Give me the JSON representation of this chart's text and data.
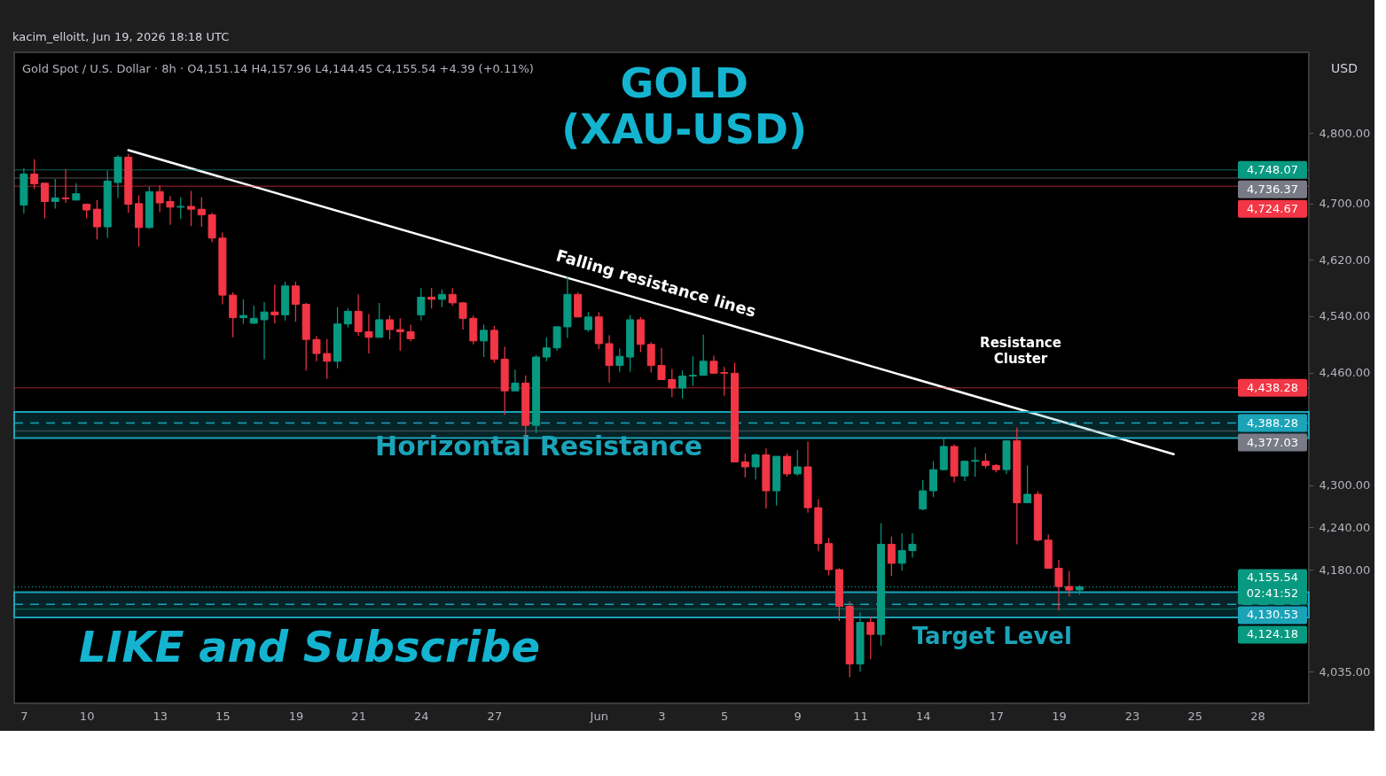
{
  "chart_data": {
    "type": "candlestick",
    "title": "GOLD (XAU-USD)",
    "subtitle": "Gold Spot / U.S. Dollar · 8h · O4,151.14 H4,157.96 L4,144.45 C4,155.54 +4.39 (+0.11%)",
    "annotations": [
      "kacim_elloitt, Jun 19, 2026 18:18 UTC",
      "Falling resistance lines",
      "Resistance Cluster",
      "LIKE and Subscribe",
      "USD"
    ],
    "categories": [
      "7",
      null,
      null,
      null,
      null,
      null,
      "10",
      null,
      null,
      null,
      null,
      null,
      null,
      "13",
      null,
      null,
      null,
      null,
      null,
      "15",
      null,
      null,
      null,
      null,
      null,
      null,
      "19",
      null,
      null,
      null,
      null,
      null,
      "21",
      null,
      null,
      null,
      null,
      null,
      "24",
      null,
      null,
      null,
      null,
      null,
      null,
      "27",
      null,
      null,
      null,
      null,
      null,
      null,
      null,
      null,
      null,
      "Jun",
      null,
      null,
      null,
      null,
      null,
      "3",
      null,
      null,
      null,
      null,
      null,
      "5",
      null,
      null,
      null,
      null,
      null,
      null,
      "9",
      null,
      null,
      null,
      null,
      null,
      "11",
      null,
      null,
      null,
      null,
      null,
      "14",
      null,
      null,
      null,
      null,
      null,
      null,
      "17",
      null,
      null,
      null,
      null,
      null,
      "19",
      null,
      null,
      null,
      null,
      null,
      null,
      "23",
      null,
      null,
      null,
      null,
      null,
      "25",
      null,
      null,
      null,
      null,
      null,
      "28",
      null,
      null,
      null,
      null
    ],
    "ohlc": [
      [
        4698,
        4750,
        4686,
        4742
      ],
      [
        4742,
        4763,
        4721,
        4728
      ],
      [
        4729,
        4729,
        4679,
        4703
      ],
      [
        4703,
        4735,
        4693,
        4708
      ],
      [
        4708,
        4749,
        4701,
        4707
      ],
      [
        4705,
        4729,
        4705,
        4714
      ],
      [
        4699,
        4700,
        4679,
        4691
      ],
      [
        4692,
        4705,
        4649,
        4667
      ],
      [
        4667,
        4747,
        4651,
        4732
      ],
      [
        4730,
        4769,
        4708,
        4766
      ],
      [
        4766,
        4771,
        4687,
        4699
      ],
      [
        4700,
        4712,
        4639,
        4666
      ],
      [
        4666,
        4724,
        4664,
        4717
      ],
      [
        4717,
        4726,
        4688,
        4701
      ],
      [
        4703,
        4711,
        4670,
        4695
      ],
      [
        4695,
        4709,
        4678,
        4696
      ],
      [
        4696,
        4718,
        4668,
        4692
      ],
      [
        4692,
        4709,
        4667,
        4684
      ],
      [
        4684,
        4687,
        4645,
        4651
      ],
      [
        4651,
        4659,
        4557,
        4570
      ],
      [
        4570,
        4574,
        4510,
        4538
      ],
      [
        4538,
        4564,
        4529,
        4541
      ],
      [
        4530,
        4555,
        4529,
        4537
      ],
      [
        4535,
        4560,
        4479,
        4546
      ],
      [
        4546,
        4585,
        4530,
        4542
      ],
      [
        4542,
        4589,
        4534,
        4583
      ],
      [
        4583,
        4589,
        4532,
        4557
      ],
      [
        4557,
        4559,
        4463,
        4507
      ],
      [
        4507,
        4512,
        4476,
        4487
      ],
      [
        4487,
        4508,
        4451,
        4476
      ],
      [
        4476,
        4553,
        4466,
        4529
      ],
      [
        4529,
        4551,
        4524,
        4547
      ],
      [
        4547,
        4571,
        4512,
        4518
      ],
      [
        4518,
        4543,
        4487,
        4510
      ],
      [
        4510,
        4559,
        4510,
        4535
      ],
      [
        4535,
        4541,
        4507,
        4521
      ],
      [
        4521,
        4537,
        4491,
        4518
      ],
      [
        4518,
        4528,
        4504,
        4508
      ],
      [
        4542,
        4580,
        4534,
        4567
      ],
      [
        4567,
        4580,
        4551,
        4564
      ],
      [
        4564,
        4578,
        4553,
        4571
      ],
      [
        4571,
        4580,
        4555,
        4559
      ],
      [
        4559,
        4560,
        4521,
        4537
      ],
      [
        4537,
        4541,
        4500,
        4505
      ],
      [
        4505,
        4528,
        4482,
        4520
      ],
      [
        4520,
        4526,
        4474,
        4479
      ],
      [
        4479,
        4497,
        4400,
        4434
      ],
      [
        4434,
        4464,
        4434,
        4445
      ],
      [
        4445,
        4456,
        4367,
        4385
      ],
      [
        4385,
        4485,
        4374,
        4482
      ],
      [
        4482,
        4510,
        4476,
        4495
      ],
      [
        4495,
        4526,
        4491,
        4525
      ],
      [
        4525,
        4596,
        4509,
        4571
      ],
      [
        4571,
        4574,
        4539,
        4539
      ],
      [
        4521,
        4546,
        4518,
        4539
      ],
      [
        4539,
        4546,
        4493,
        4501
      ],
      [
        4501,
        4513,
        4446,
        4470
      ],
      [
        4470,
        4494,
        4461,
        4483
      ],
      [
        4482,
        4542,
        4461,
        4535
      ],
      [
        4535,
        4539,
        4489,
        4500
      ],
      [
        4500,
        4503,
        4460,
        4470
      ],
      [
        4470,
        4495,
        4450,
        4450
      ],
      [
        4450,
        4465,
        4425,
        4438
      ],
      [
        4438,
        4463,
        4423,
        4455
      ],
      [
        4455,
        4483,
        4441,
        4456
      ],
      [
        4456,
        4514,
        4456,
        4476
      ],
      [
        4476,
        4484,
        4459,
        4459
      ],
      [
        4460,
        4468,
        4427,
        4459
      ],
      [
        4459,
        4474,
        4333,
        4333
      ],
      [
        4333,
        4345,
        4311,
        4326
      ],
      [
        4326,
        4345,
        4308,
        4343
      ],
      [
        4343,
        4352,
        4267,
        4292
      ],
      [
        4292,
        4341,
        4271,
        4341
      ],
      [
        4341,
        4345,
        4312,
        4316
      ],
      [
        4316,
        4350,
        4313,
        4326
      ],
      [
        4326,
        4362,
        4261,
        4268
      ],
      [
        4268,
        4280,
        4206,
        4217
      ],
      [
        4217,
        4225,
        4172,
        4180
      ],
      [
        4180,
        4182,
        4107,
        4128
      ],
      [
        4128,
        4135,
        4027,
        4046
      ],
      [
        4046,
        4119,
        4035,
        4105
      ],
      [
        4105,
        4113,
        4053,
        4088
      ],
      [
        4088,
        4246,
        4072,
        4216
      ],
      [
        4216,
        4227,
        4171,
        4189
      ],
      [
        4189,
        4232,
        4178,
        4207
      ],
      [
        4207,
        4232,
        4197,
        4216
      ],
      [
        4266,
        4307,
        4264,
        4292
      ],
      [
        4292,
        4334,
        4283,
        4322
      ],
      [
        4322,
        4368,
        4321,
        4355
      ],
      [
        4355,
        4358,
        4304,
        4313
      ],
      [
        4313,
        4334,
        4306,
        4334
      ],
      [
        4334,
        4354,
        4312,
        4335
      ],
      [
        4334,
        4345,
        4324,
        4328
      ],
      [
        4328,
        4330,
        4318,
        4322
      ],
      [
        4322,
        4364,
        4316,
        4363
      ],
      [
        4363,
        4382,
        4216,
        4275
      ],
      [
        4275,
        4328,
        4275,
        4287
      ],
      [
        4287,
        4291,
        4220,
        4222
      ],
      [
        4222,
        4230,
        4182,
        4182
      ],
      [
        4182,
        4194,
        4122,
        4156
      ],
      [
        4156,
        4178,
        4142,
        4151
      ],
      [
        4151.14,
        4157.96,
        4144.45,
        4155.54
      ],
      null,
      null,
      null,
      null,
      null,
      null,
      null,
      null,
      null,
      null,
      null,
      null,
      null,
      null,
      null,
      null,
      null,
      null,
      null,
      null,
      null
    ],
    "colors": [
      "#089981",
      "#f23645",
      "#f23645",
      "#089981",
      "#f23645",
      "#089981",
      "#f23645",
      "#f23645",
      "#089981",
      "#089981",
      "#f23645",
      "#f23645",
      "#089981",
      "#f23645",
      "#f23645",
      "#089981",
      "#f23645",
      "#f23645",
      "#f23645",
      "#f23645",
      "#f23645",
      "#089981",
      "#089981",
      "#089981",
      "#f23645",
      "#089981",
      "#f23645",
      "#f23645",
      "#f23645",
      "#f23645",
      "#089981",
      "#089981",
      "#f23645",
      "#f23645",
      "#089981",
      "#f23645",
      "#f23645",
      "#f23645",
      "#089981",
      "#f23645",
      "#089981",
      "#f23645",
      "#f23645",
      "#f23645",
      "#089981",
      "#f23645",
      "#f23645",
      "#089981",
      "#f23645",
      "#089981",
      "#089981",
      "#089981",
      "#089981",
      "#f23645",
      "#089981",
      "#f23645",
      "#f23645",
      "#089981",
      "#089981",
      "#f23645",
      "#f23645",
      "#f23645",
      "#f23645",
      "#089981",
      "#089981",
      "#089981",
      "#f23645",
      "#f23645",
      "#f23645",
      "#f23645",
      "#089981",
      "#f23645",
      "#089981",
      "#f23645",
      "#089981",
      "#f23645",
      "#f23645",
      "#f23645",
      "#f23645",
      "#f23645",
      "#089981",
      "#f23645",
      "#089981",
      "#f23645",
      "#089981",
      "#089981",
      "#089981",
      "#089981",
      "#089981",
      "#f23645",
      "#089981",
      "#089981",
      "#f23645",
      "#f23645",
      "#089981",
      "#f23645",
      "#089981",
      "#f23645",
      "#f23645",
      "#f23645",
      "#f23645",
      "#089981",
      null,
      null,
      null,
      null,
      null,
      null,
      null,
      null,
      null,
      null,
      null,
      null,
      null,
      null,
      null,
      null,
      null,
      null,
      null,
      null,
      null
    ],
    "series": [
      {
        "type": "line",
        "color": "#ffffff",
        "values": [
          null,
          null,
          null,
          null,
          null,
          null,
          null,
          null,
          null,
          null,
          4776,
          null,
          null,
          null,
          null,
          null,
          null,
          null,
          null,
          null,
          null,
          null,
          null,
          null,
          null,
          null,
          null,
          null,
          null,
          null,
          null,
          null,
          null,
          null,
          null,
          null,
          null,
          null,
          null,
          null,
          null,
          null,
          null,
          null,
          null,
          null,
          null,
          null,
          null,
          null,
          null,
          null,
          null,
          null,
          null,
          null,
          null,
          null,
          null,
          null,
          null,
          null,
          null,
          null,
          null,
          null,
          null,
          null,
          null,
          null,
          null,
          null,
          null,
          null,
          null,
          null,
          null,
          null,
          null,
          null,
          null,
          null,
          null,
          null,
          null,
          null,
          null,
          null,
          null,
          null,
          null,
          null,
          null,
          null,
          null,
          null,
          null,
          null,
          null,
          null,
          null,
          null,
          null,
          null,
          null,
          null,
          null,
          null,
          null,
          null,
          4344,
          null,
          null,
          null,
          null,
          null,
          null,
          null,
          null,
          null,
          null,
          null,
          null
        ]
      }
    ],
    "ylim": [
      3990,
      4915
    ],
    "yticks": [
      {
        "value": 4035,
        "label": "4,035.00"
      },
      {
        "value": 4180,
        "label": "4,180.00"
      },
      {
        "value": 4240,
        "label": "4,240.00"
      },
      {
        "value": 4300,
        "label": "4,300.00"
      },
      {
        "value": 4460,
        "label": "4,460.00"
      },
      {
        "value": 4540,
        "label": "4,540.00"
      },
      {
        "value": 4620,
        "label": "4,620.00"
      },
      {
        "value": 4700,
        "label": "4,700.00"
      },
      {
        "value": 4800,
        "label": "4,800.00"
      }
    ],
    "bands": [
      {
        "axis": "y",
        "from": 4367,
        "to": 4404,
        "label": "Horizontal Resistance",
        "color": "#1ba3b8"
      },
      {
        "axis": "y",
        "from": 4112,
        "to": 4148,
        "label": "Target Level",
        "color": "#1ba3b8"
      }
    ],
    "ref_lines": [
      {
        "axis": "y",
        "value": 4748.07,
        "label": "4,748.07",
        "color": "#089981",
        "line_style": "solid"
      },
      {
        "axis": "y",
        "value": 4736.37,
        "label": "4,736.37",
        "color": "#787b86",
        "line_style": "solid"
      },
      {
        "axis": "y",
        "value": 4724.67,
        "label": "4,724.67",
        "color": "#f23645",
        "line_style": "solid"
      },
      {
        "axis": "y",
        "value": 4438.28,
        "label": "4,438.28",
        "color": "#f23645",
        "line_style": "solid"
      },
      {
        "axis": "y",
        "value": 4388.28,
        "label": "4,388.28",
        "color": "#1ba3b8",
        "line_style": "dashed"
      },
      {
        "axis": "y",
        "value": 4377.03,
        "label": "4,377.03",
        "color": "#787b86",
        "line_style": "solid"
      },
      {
        "axis": "y",
        "value": 4155.54,
        "label": "4,155.54 02:41:52",
        "color": "#089981",
        "line_style": "dotted"
      },
      {
        "axis": "y",
        "value": 4130.53,
        "label": "4,130.53",
        "color": "#1ba3b8",
        "line_style": "dashed"
      },
      {
        "axis": "y",
        "value": 4124.18,
        "label": "4,124.18",
        "color": "#089981",
        "line_style": "solid"
      }
    ]
  }
}
